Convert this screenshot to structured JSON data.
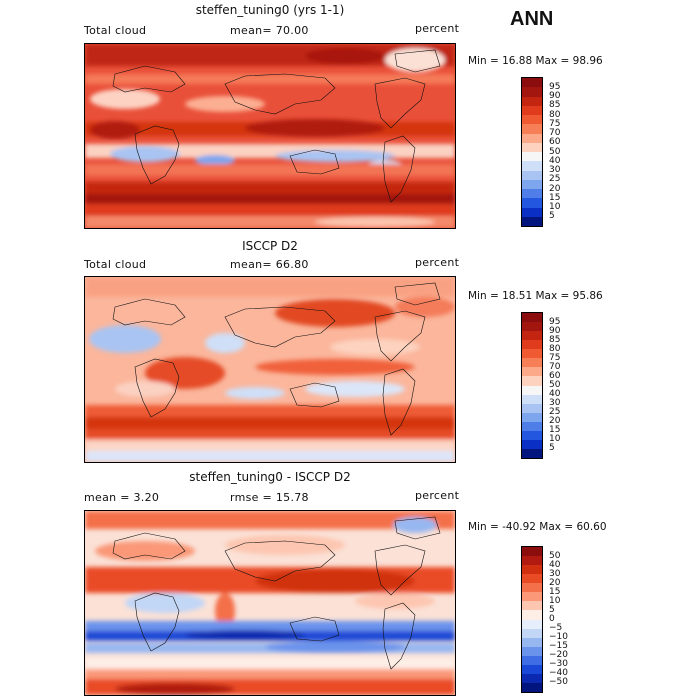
{
  "season": "ANN",
  "panels": [
    {
      "title": "steffen_tuning0 (yrs 1-1)",
      "left_label": "Total cloud",
      "center_label": "mean=   70.00",
      "right_label": "percent",
      "minmax": "Min =  16.88 Max =  98.96",
      "colorbar_labels": [
        "95",
        "90",
        "85",
        "80",
        "75",
        "70",
        "60",
        "50",
        "40",
        "30",
        "25",
        "20",
        "15",
        "10",
        "5"
      ],
      "colorbar_colors": [
        "#8c0d0d",
        "#a3150f",
        "#c42510",
        "#df3b1c",
        "#ef5a33",
        "#f77f58",
        "#fca98a",
        "#fdd3c0",
        "#f6f6f6",
        "#cfdff8",
        "#a9c4f3",
        "#7ea6ef",
        "#4f7ee9",
        "#2457e0",
        "#0a2fc4",
        "#02157e"
      ]
    },
    {
      "title": "ISCCP D2",
      "left_label": "Total cloud",
      "center_label": "mean=   66.80",
      "right_label": "percent",
      "minmax": "Min =  18.51 Max =  95.86",
      "colorbar_labels": [
        "95",
        "90",
        "85",
        "80",
        "75",
        "70",
        "60",
        "50",
        "40",
        "30",
        "25",
        "20",
        "15",
        "10",
        "5"
      ],
      "colorbar_colors": [
        "#8c0d0d",
        "#a3150f",
        "#c42510",
        "#df3b1c",
        "#ef5a33",
        "#f77f58",
        "#fca98a",
        "#fdd3c0",
        "#f6f6f6",
        "#cfdff8",
        "#a9c4f3",
        "#7ea6ef",
        "#4f7ee9",
        "#2457e0",
        "#0a2fc4",
        "#02157e"
      ]
    },
    {
      "title": "steffen_tuning0 - ISCCP D2",
      "left_label": "mean =    3.20",
      "center_label": "rmse =  15.78",
      "right_label": "percent",
      "minmax": "Min = -40.92 Max =  60.60",
      "colorbar_labels": [
        "50",
        "40",
        "30",
        "20",
        "15",
        "10",
        "5",
        "0",
        "−5",
        "−10",
        "−15",
        "−20",
        "−30",
        "−40",
        "−50"
      ],
      "colorbar_colors": [
        "#8c0d0d",
        "#b01a10",
        "#d0300f",
        "#e94c25",
        "#f4704a",
        "#fa9878",
        "#fdc6b1",
        "#fdeee6",
        "#e6eefb",
        "#c2d6f6",
        "#97b7f1",
        "#6a93ec",
        "#3e6de5",
        "#1a48d6",
        "#0a29b0",
        "#02157e"
      ]
    }
  ]
}
